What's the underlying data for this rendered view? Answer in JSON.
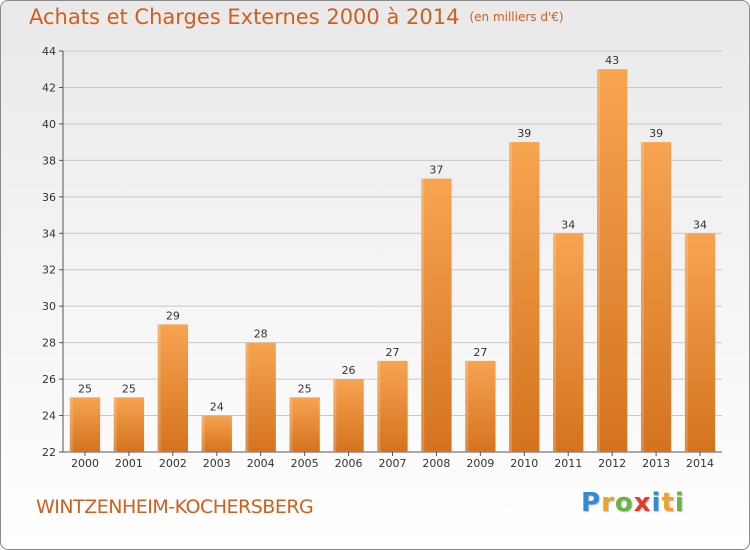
{
  "title": "Achats et Charges Externes 2000 à 2014",
  "subtitle": "(en milliers d'€)",
  "commune": "WINTZENHEIM-KOCHERSBERG",
  "logo": {
    "text": "Proxiti",
    "letters": [
      {
        "ch": "P",
        "color": "#2e8bd6"
      },
      {
        "ch": "r",
        "color": "#f0a12b"
      },
      {
        "ch": "o",
        "color": "#6cb33f"
      },
      {
        "ch": "x",
        "color": "#e23d28"
      },
      {
        "ch": "i",
        "color": "#2e8bd6"
      },
      {
        "ch": "t",
        "color": "#f0a12b"
      },
      {
        "ch": "i",
        "color": "#6cb33f"
      }
    ]
  },
  "colors": {
    "accent": "#d35e1c",
    "bar_top": "#f7a451",
    "bar_bottom": "#d4731f",
    "grid": "#c8c8c8"
  },
  "chart_data": {
    "type": "bar",
    "title": "Achats et Charges Externes 2000 à 2014",
    "subtitle": "(en milliers d'€)",
    "categories": [
      "2000",
      "2001",
      "2002",
      "2003",
      "2004",
      "2005",
      "2006",
      "2007",
      "2008",
      "2009",
      "2010",
      "2011",
      "2012",
      "2013",
      "2014"
    ],
    "values": [
      25,
      25,
      29,
      24,
      28,
      25,
      26,
      27,
      37,
      27,
      39,
      34,
      43,
      39,
      34
    ],
    "ylim": [
      22,
      44
    ],
    "yticks": [
      22,
      24,
      26,
      28,
      30,
      32,
      34,
      36,
      38,
      40,
      42,
      44
    ],
    "grid": true
  }
}
